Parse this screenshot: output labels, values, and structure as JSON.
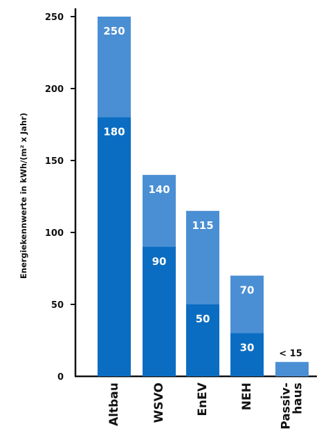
{
  "chart_data": {
    "type": "bar",
    "stacked": false,
    "overlapping": true,
    "ylabel": "Energiekennwerte in kWh/(m² x Jahr)",
    "ylim": [
      0,
      250
    ],
    "yticks": [
      "0",
      "50",
      "100",
      "150",
      "200",
      "250"
    ],
    "categories": [
      "Altbau",
      "WSVO",
      "EnEV",
      "NEH",
      "Passiv-\nhaus"
    ],
    "series": [
      {
        "values": [
          250,
          140,
          115,
          70,
          10
        ],
        "labels": [
          "250",
          "140",
          "115",
          "70",
          "< 15"
        ],
        "color": "#4a8fd4"
      },
      {
        "values": [
          180,
          90,
          50,
          30,
          null
        ],
        "labels": [
          "180",
          "90",
          "50",
          "30",
          ""
        ],
        "color": "#0a6dc2"
      }
    ],
    "grid": false,
    "legend": "none"
  }
}
